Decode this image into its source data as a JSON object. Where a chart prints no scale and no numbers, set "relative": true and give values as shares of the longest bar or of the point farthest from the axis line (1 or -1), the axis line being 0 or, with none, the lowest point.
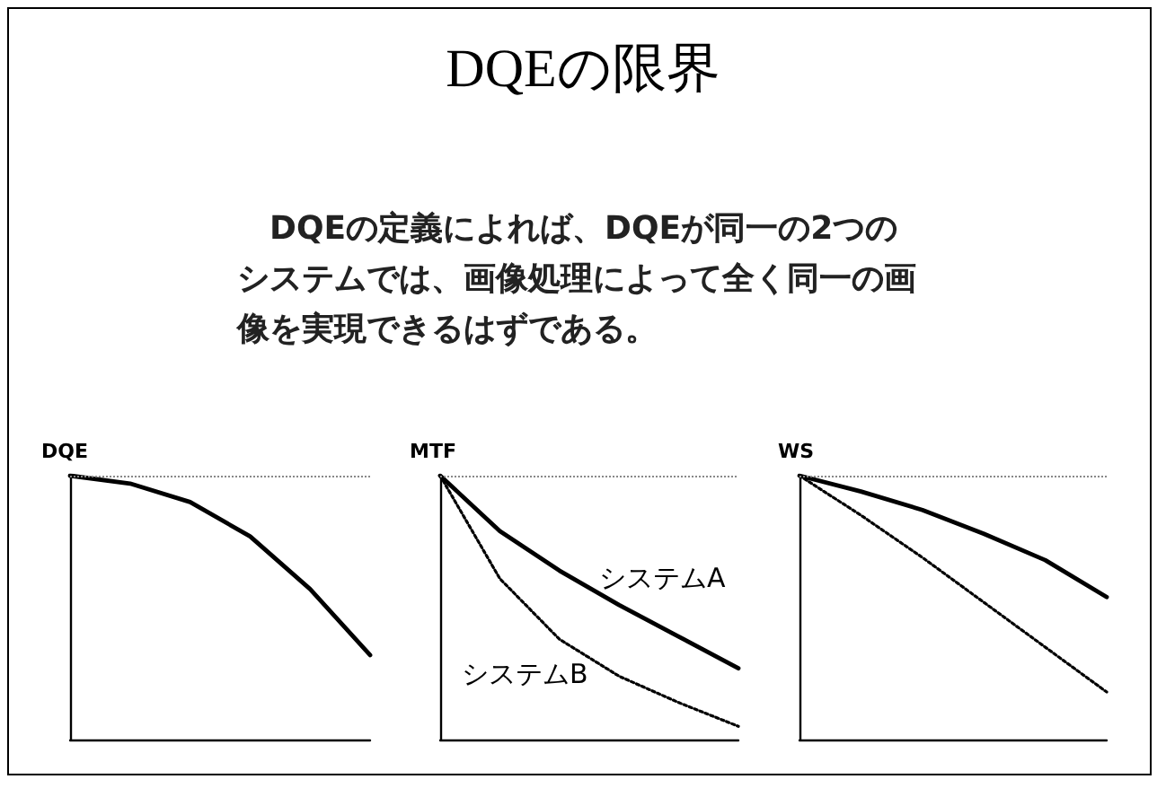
{
  "chart_data": [
    {
      "type": "line",
      "ylabel": "DQE",
      "relative": true,
      "categories": [
        null,
        null,
        null,
        null,
        null,
        null
      ],
      "series": [
        {
          "color": "#000000",
          "line_style": "solid",
          "values": [
            1,
            0.97,
            0.9,
            0.77,
            0.57,
            0.32
          ]
        }
      ],
      "ref_lines": [
        {
          "axis": "y",
          "value": 1,
          "color": "#888888",
          "line_style": "dotted"
        }
      ],
      "marker": "none",
      "grid": false,
      "legend": false
    },
    {
      "type": "line",
      "title": "DQEの限界",
      "subtitle": "DQEの定義によれば、DQEが同一の2つのシステムでは、画像処理によって全く同一の画像を実現できるはずである。",
      "ylabel": "MTF",
      "relative": true,
      "categories": [
        null,
        null,
        null,
        null,
        null,
        null
      ],
      "series": [
        {
          "name": "システムA",
          "color": "#000000",
          "line_style": "solid",
          "values": [
            1,
            0.79,
            0.64,
            0.51,
            0.39,
            0.27
          ]
        },
        {
          "name": "システムB",
          "color": "#000000",
          "line_style": "dotted",
          "values": [
            1,
            0.61,
            0.38,
            0.24,
            0.14,
            0.05
          ]
        }
      ],
      "ref_lines": [
        {
          "axis": "y",
          "value": 1,
          "color": "#888888",
          "line_style": "dotted"
        }
      ],
      "marker": "none",
      "grid": false,
      "legend": false
    },
    {
      "type": "line",
      "ylabel": "WS",
      "relative": true,
      "categories": [
        null,
        null,
        null,
        null,
        null,
        null
      ],
      "series": [
        {
          "color": "#000000",
          "line_style": "solid",
          "values": [
            1,
            0.94,
            0.87,
            0.78,
            0.68,
            0.54
          ]
        },
        {
          "color": "#000000",
          "line_style": "dotted",
          "values": [
            1,
            0.85,
            0.69,
            0.52,
            0.35,
            0.18
          ]
        }
      ],
      "ref_lines": [
        {
          "axis": "y",
          "value": 1,
          "color": "#888888",
          "line_style": "dotted"
        }
      ],
      "marker": "none",
      "grid": false,
      "legend": false
    }
  ]
}
